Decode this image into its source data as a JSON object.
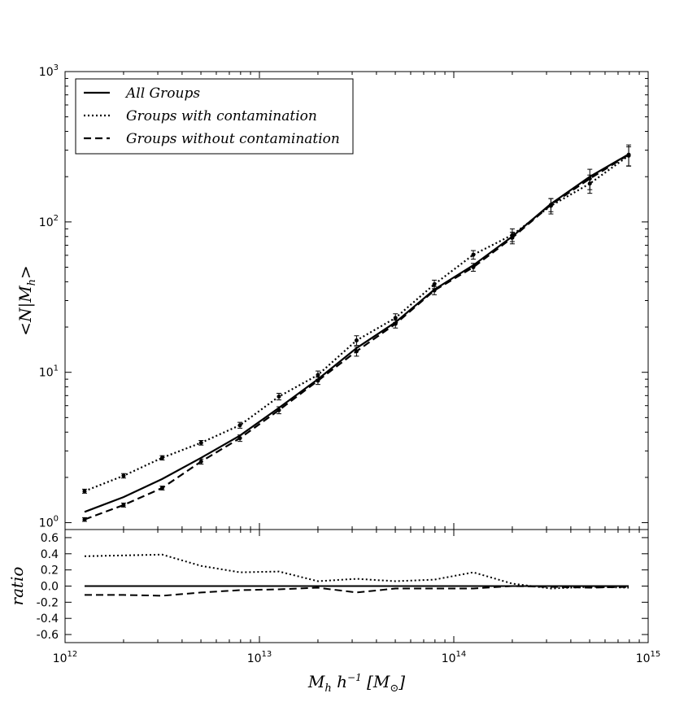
{
  "chart_data": [
    {
      "type": "line",
      "scale": {
        "x": "log",
        "y": "log"
      },
      "xlim": [
        1000000000000.0,
        1000000000000000.0
      ],
      "ylim": [
        0.9,
        1000
      ],
      "ylabel": "<N|M_h>",
      "xlabel": "",
      "y_tick_labels": [
        {
          "base": "10",
          "exp": "0"
        },
        {
          "base": "10",
          "exp": "1"
        },
        {
          "base": "10",
          "exp": "2"
        },
        {
          "base": "10",
          "exp": "3"
        }
      ],
      "legend_position": "top-left",
      "series": [
        {
          "name": "All Groups",
          "style": "solid",
          "x": [
            1260000000000.0,
            2000000000000.0,
            3160000000000.0,
            5010000000000.0,
            7940000000000.0,
            12600000000000.0,
            20000000000000.0,
            31600000000000.0,
            50100000000000.0,
            79400000000000.0,
            126000000000000.0,
            200000000000000.0,
            316000000000000.0,
            501000000000000.0,
            794000000000000.0
          ],
          "y": [
            1.18,
            1.48,
            1.95,
            2.7,
            3.8,
            5.8,
            9.0,
            14.5,
            21.5,
            35.5,
            51.5,
            80.0,
            132,
            200,
            282
          ]
        },
        {
          "name": "Groups with contamination",
          "style": "dotted",
          "x": [
            1260000000000.0,
            2000000000000.0,
            3160000000000.0,
            5010000000000.0,
            7940000000000.0,
            12600000000000.0,
            20000000000000.0,
            31600000000000.0,
            50100000000000.0,
            79400000000000.0,
            126000000000000.0,
            200000000000000.0,
            316000000000000.0,
            501000000000000.0,
            794000000000000.0
          ],
          "y": [
            1.62,
            2.05,
            2.7,
            3.4,
            4.45,
            6.9,
            9.6,
            16.3,
            23.0,
            38.5,
            60.5,
            82.0,
            128,
            180,
            276
          ],
          "y_err": [
            0.05,
            0.07,
            0.09,
            0.12,
            0.2,
            0.35,
            0.6,
            1.2,
            1.5,
            2.5,
            4,
            8,
            15,
            25,
            40
          ]
        },
        {
          "name": "Groups without contamination",
          "style": "dashed",
          "x": [
            1260000000000.0,
            2000000000000.0,
            3160000000000.0,
            5010000000000.0,
            7940000000000.0,
            12600000000000.0,
            20000000000000.0,
            31600000000000.0,
            50100000000000.0,
            79400000000000.0,
            126000000000000.0,
            200000000000000.0,
            316000000000000.0,
            501000000000000.0,
            794000000000000.0
          ],
          "y": [
            1.05,
            1.31,
            1.7,
            2.55,
            3.65,
            5.6,
            8.8,
            13.8,
            21.0,
            35.0,
            50.0,
            78.5,
            130,
            194,
            280
          ],
          "y_err": [
            0.03,
            0.04,
            0.05,
            0.1,
            0.18,
            0.3,
            0.5,
            1.0,
            1.3,
            2.2,
            3,
            7,
            13,
            30,
            45
          ]
        }
      ]
    },
    {
      "type": "line",
      "scale": {
        "x": "log",
        "y": "linear"
      },
      "xlim": [
        1000000000000.0,
        1000000000000000.0
      ],
      "ylim": [
        -0.7,
        0.7
      ],
      "ylabel": "ratio",
      "xlabel": "M_h h^-1 [M_sun]",
      "y_ticks": [
        "-0.6",
        "-0.4",
        "-0.2",
        "0.0",
        "0.2",
        "0.4",
        "0.6"
      ],
      "x_tick_labels": [
        {
          "base": "10",
          "exp": "12"
        },
        {
          "base": "10",
          "exp": "13"
        },
        {
          "base": "10",
          "exp": "14"
        },
        {
          "base": "10",
          "exp": "15"
        }
      ],
      "series": [
        {
          "name": "All Groups",
          "style": "solid",
          "x": [
            1260000000000.0,
            794000000000000.0
          ],
          "y": [
            0.0,
            0.0
          ]
        },
        {
          "name": "Groups with contamination",
          "style": "dotted",
          "x": [
            1260000000000.0,
            2000000000000.0,
            3160000000000.0,
            5010000000000.0,
            7940000000000.0,
            12600000000000.0,
            20000000000000.0,
            31600000000000.0,
            50100000000000.0,
            79400000000000.0,
            126000000000000.0,
            200000000000000.0,
            316000000000000.0,
            501000000000000.0,
            794000000000000.0
          ],
          "y": [
            0.37,
            0.38,
            0.39,
            0.25,
            0.17,
            0.18,
            0.06,
            0.09,
            0.06,
            0.08,
            0.17,
            0.03,
            -0.03,
            -0.01,
            -0.02
          ]
        },
        {
          "name": "Groups without contamination",
          "style": "dashed",
          "x": [
            1260000000000.0,
            2000000000000.0,
            3160000000000.0,
            5010000000000.0,
            7940000000000.0,
            12600000000000.0,
            20000000000000.0,
            31600000000000.0,
            50100000000000.0,
            79400000000000.0,
            126000000000000.0,
            200000000000000.0,
            316000000000000.0,
            501000000000000.0,
            794000000000000.0
          ],
          "y": [
            -0.11,
            -0.11,
            -0.12,
            -0.08,
            -0.05,
            -0.04,
            -0.02,
            -0.08,
            -0.03,
            -0.03,
            -0.03,
            0.0,
            -0.01,
            -0.02,
            -0.01
          ]
        }
      ]
    }
  ]
}
